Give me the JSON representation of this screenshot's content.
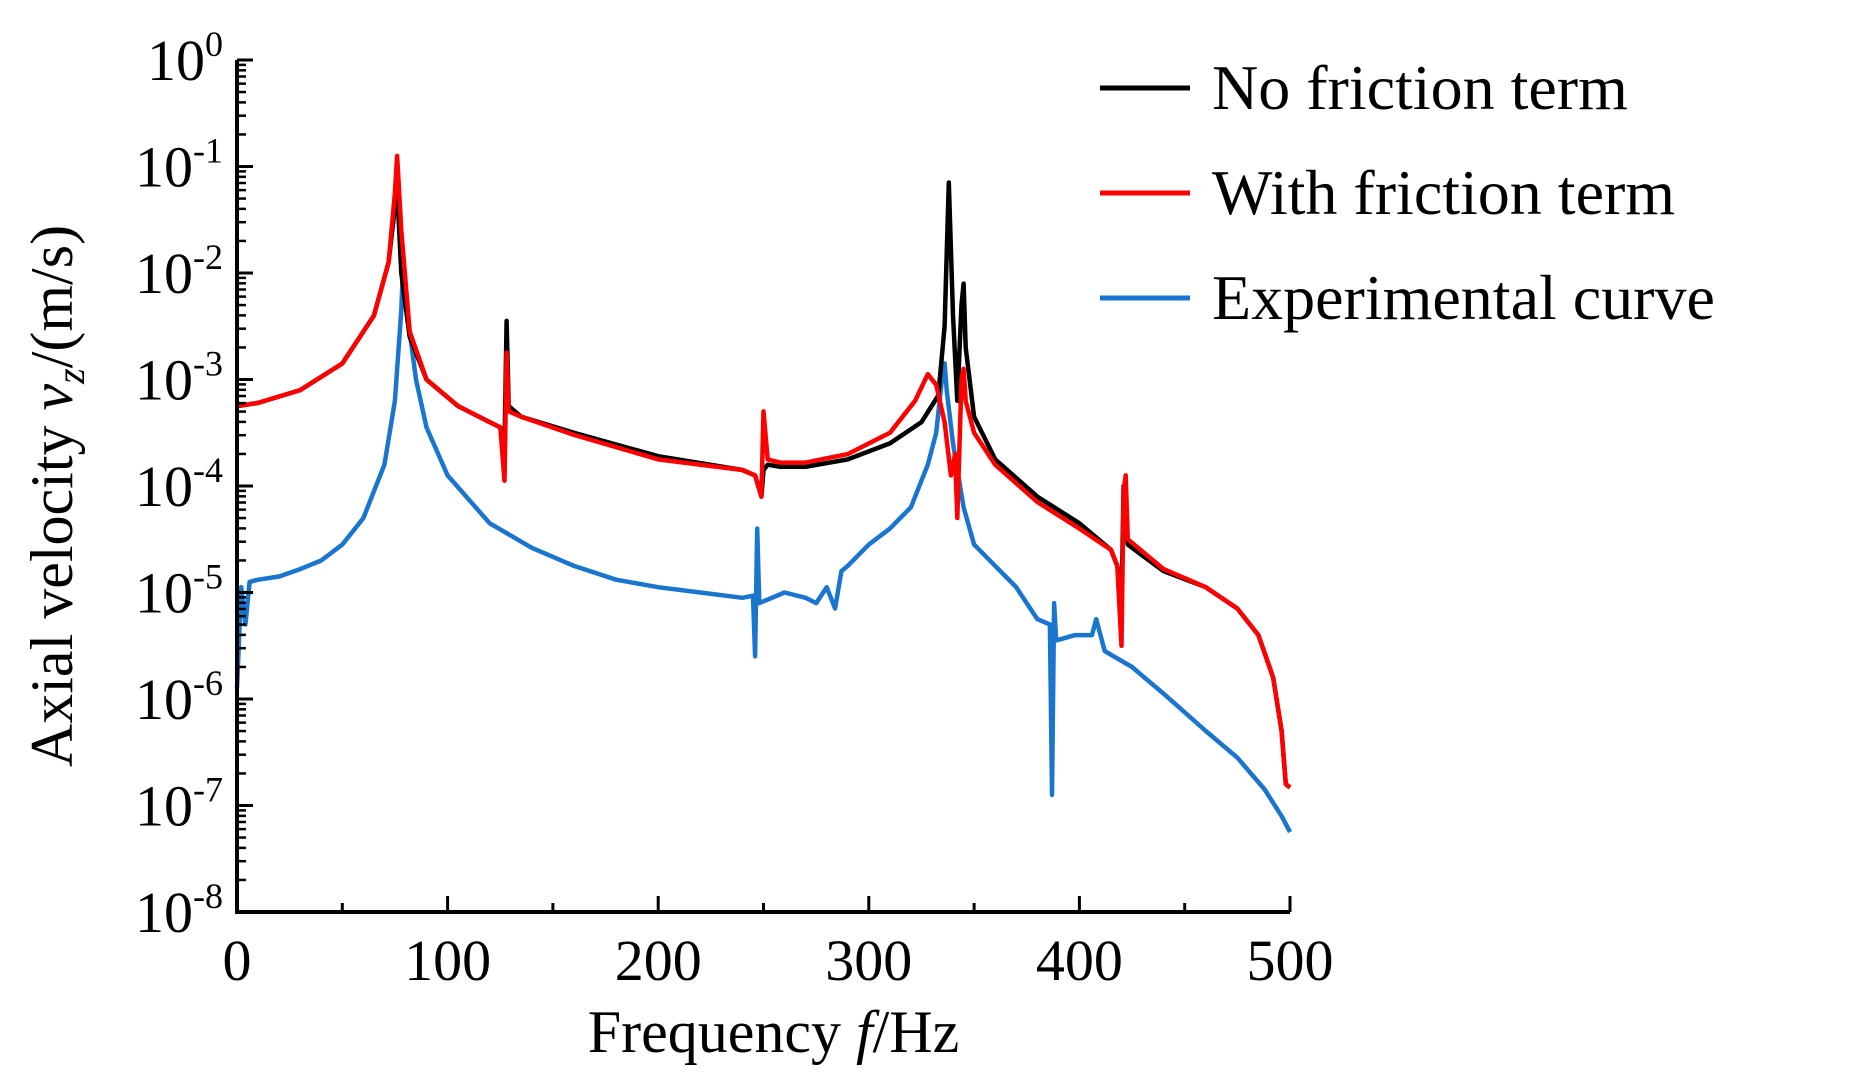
{
  "chart_data": {
    "type": "line",
    "title": "",
    "xlabel": "Frequency f/Hz",
    "ylabel": "Axial velocity v_z/(m/s)",
    "xlabel_parts": {
      "prefix": "Frequency ",
      "var": "f",
      "suffix": "/Hz"
    },
    "ylabel_parts": {
      "prefix": "Axial velocity ",
      "var": "v",
      "sub": "z",
      "suffix": "/(m/s)"
    },
    "xscale": "linear",
    "yscale": "log",
    "xlim": [
      0,
      500
    ],
    "ylim_exp": [
      -8,
      0
    ],
    "x_ticks": [
      0,
      100,
      200,
      300,
      400,
      500
    ],
    "x_tick_labels": [
      "0",
      "100",
      "200",
      "300",
      "400",
      "500"
    ],
    "y_tick_labels": [
      {
        "base": "10",
        "exp": "0",
        "value_exp": 0
      },
      {
        "base": "10",
        "exp": "-1",
        "value_exp": -1
      },
      {
        "base": "10",
        "exp": "-2",
        "value_exp": -2
      },
      {
        "base": "10",
        "exp": "-3",
        "value_exp": -3
      },
      {
        "base": "10",
        "exp": "-4",
        "value_exp": -4
      },
      {
        "base": "10",
        "exp": "-5",
        "value_exp": -5
      },
      {
        "base": "10",
        "exp": "-6",
        "value_exp": -6
      },
      {
        "base": "10",
        "exp": "-7",
        "value_exp": -7
      },
      {
        "base": "10",
        "exp": "-8",
        "value_exp": -8
      }
    ],
    "legend_position": "top-right",
    "series": [
      {
        "name": "No friction term",
        "color": "#000000",
        "points": [
          [
            0,
            -3.25
          ],
          [
            10,
            -3.22
          ],
          [
            30,
            -3.1
          ],
          [
            50,
            -2.85
          ],
          [
            65,
            -2.4
          ],
          [
            72,
            -1.9
          ],
          [
            76,
            -1.2
          ],
          [
            78,
            -2.0
          ],
          [
            82,
            -2.6
          ],
          [
            90,
            -3.0
          ],
          [
            105,
            -3.25
          ],
          [
            120,
            -3.4
          ],
          [
            125,
            -3.45
          ],
          [
            127,
            -3.65
          ],
          [
            128,
            -2.45
          ],
          [
            129,
            -3.25
          ],
          [
            135,
            -3.35
          ],
          [
            160,
            -3.5
          ],
          [
            200,
            -3.72
          ],
          [
            240,
            -3.85
          ],
          [
            246,
            -3.9
          ],
          [
            249,
            -4.1
          ],
          [
            250,
            -3.85
          ],
          [
            252,
            -3.8
          ],
          [
            258,
            -3.82
          ],
          [
            270,
            -3.82
          ],
          [
            290,
            -3.75
          ],
          [
            310,
            -3.6
          ],
          [
            325,
            -3.4
          ],
          [
            333,
            -3.15
          ],
          [
            336,
            -2.5
          ],
          [
            338,
            -1.15
          ],
          [
            340,
            -2.4
          ],
          [
            342,
            -3.2
          ],
          [
            344,
            -2.3
          ],
          [
            345,
            -2.1
          ],
          [
            346,
            -2.7
          ],
          [
            350,
            -3.35
          ],
          [
            360,
            -3.75
          ],
          [
            380,
            -4.1
          ],
          [
            400,
            -4.35
          ],
          [
            415,
            -4.6
          ],
          [
            418,
            -4.75
          ],
          [
            420,
            -5.1
          ],
          [
            421,
            -4.0
          ],
          [
            423,
            -4.55
          ],
          [
            440,
            -4.8
          ],
          [
            460,
            -4.95
          ],
          [
            475,
            -5.15
          ],
          [
            485,
            -5.4
          ],
          [
            492,
            -5.8
          ],
          [
            496,
            -6.3
          ],
          [
            498,
            -6.8
          ],
          [
            500,
            -6.83
          ]
        ]
      },
      {
        "name": "With friction term",
        "color": "#ff0000",
        "points": [
          [
            0,
            -3.25
          ],
          [
            10,
            -3.22
          ],
          [
            30,
            -3.1
          ],
          [
            50,
            -2.85
          ],
          [
            65,
            -2.4
          ],
          [
            72,
            -1.9
          ],
          [
            75,
            -1.25
          ],
          [
            76,
            -0.9
          ],
          [
            78,
            -1.6
          ],
          [
            82,
            -2.55
          ],
          [
            90,
            -3.0
          ],
          [
            105,
            -3.25
          ],
          [
            120,
            -3.4
          ],
          [
            125,
            -3.45
          ],
          [
            127,
            -3.95
          ],
          [
            128,
            -2.75
          ],
          [
            129,
            -3.3
          ],
          [
            135,
            -3.35
          ],
          [
            160,
            -3.52
          ],
          [
            200,
            -3.75
          ],
          [
            240,
            -3.85
          ],
          [
            246,
            -3.9
          ],
          [
            249,
            -4.1
          ],
          [
            250,
            -3.3
          ],
          [
            252,
            -3.75
          ],
          [
            258,
            -3.78
          ],
          [
            270,
            -3.78
          ],
          [
            290,
            -3.7
          ],
          [
            310,
            -3.5
          ],
          [
            322,
            -3.2
          ],
          [
            328,
            -2.95
          ],
          [
            332,
            -3.05
          ],
          [
            336,
            -3.4
          ],
          [
            339,
            -3.9
          ],
          [
            341,
            -3.7
          ],
          [
            342,
            -4.3
          ],
          [
            344,
            -3.0
          ],
          [
            345,
            -2.9
          ],
          [
            346,
            -3.2
          ],
          [
            350,
            -3.5
          ],
          [
            360,
            -3.8
          ],
          [
            380,
            -4.15
          ],
          [
            400,
            -4.4
          ],
          [
            415,
            -4.6
          ],
          [
            418,
            -4.75
          ],
          [
            420,
            -5.5
          ],
          [
            421,
            -4.05
          ],
          [
            422,
            -3.9
          ],
          [
            423,
            -4.5
          ],
          [
            440,
            -4.78
          ],
          [
            460,
            -4.95
          ],
          [
            475,
            -5.15
          ],
          [
            485,
            -5.4
          ],
          [
            492,
            -5.8
          ],
          [
            496,
            -6.3
          ],
          [
            498,
            -6.8
          ],
          [
            500,
            -6.83
          ]
        ]
      },
      {
        "name": "Experimental curve",
        "color": "#1a75cf",
        "points": [
          [
            0,
            -5.9
          ],
          [
            2,
            -4.95
          ],
          [
            4,
            -5.3
          ],
          [
            6,
            -4.9
          ],
          [
            10,
            -4.88
          ],
          [
            20,
            -4.85
          ],
          [
            30,
            -4.78
          ],
          [
            40,
            -4.7
          ],
          [
            50,
            -4.55
          ],
          [
            60,
            -4.3
          ],
          [
            70,
            -3.8
          ],
          [
            75,
            -3.2
          ],
          [
            78,
            -2.35
          ],
          [
            79,
            -1.85
          ],
          [
            81,
            -2.4
          ],
          [
            85,
            -3.0
          ],
          [
            90,
            -3.45
          ],
          [
            100,
            -3.9
          ],
          [
            120,
            -4.35
          ],
          [
            140,
            -4.58
          ],
          [
            160,
            -4.75
          ],
          [
            180,
            -4.88
          ],
          [
            200,
            -4.95
          ],
          [
            220,
            -5.0
          ],
          [
            240,
            -5.05
          ],
          [
            245,
            -5.03
          ],
          [
            246,
            -5.6
          ],
          [
            247,
            -4.4
          ],
          [
            248,
            -5.1
          ],
          [
            260,
            -5.0
          ],
          [
            270,
            -5.05
          ],
          [
            275,
            -5.1
          ],
          [
            280,
            -4.95
          ],
          [
            284,
            -5.15
          ],
          [
            287,
            -4.8
          ],
          [
            290,
            -4.75
          ],
          [
            300,
            -4.55
          ],
          [
            310,
            -4.4
          ],
          [
            320,
            -4.2
          ],
          [
            328,
            -3.8
          ],
          [
            332,
            -3.5
          ],
          [
            335,
            -2.95
          ],
          [
            336,
            -2.85
          ],
          [
            337,
            -3.1
          ],
          [
            340,
            -3.6
          ],
          [
            345,
            -4.2
          ],
          [
            350,
            -4.55
          ],
          [
            360,
            -4.75
          ],
          [
            370,
            -4.95
          ],
          [
            380,
            -5.25
          ],
          [
            386,
            -5.3
          ],
          [
            387,
            -6.9
          ],
          [
            388,
            -5.1
          ],
          [
            389,
            -5.45
          ],
          [
            398,
            -5.4
          ],
          [
            406,
            -5.4
          ],
          [
            408,
            -5.25
          ],
          [
            412,
            -5.55
          ],
          [
            425,
            -5.7
          ],
          [
            440,
            -5.95
          ],
          [
            460,
            -6.3
          ],
          [
            475,
            -6.55
          ],
          [
            488,
            -6.85
          ],
          [
            496,
            -7.1
          ],
          [
            500,
            -7.25
          ]
        ]
      }
    ]
  }
}
